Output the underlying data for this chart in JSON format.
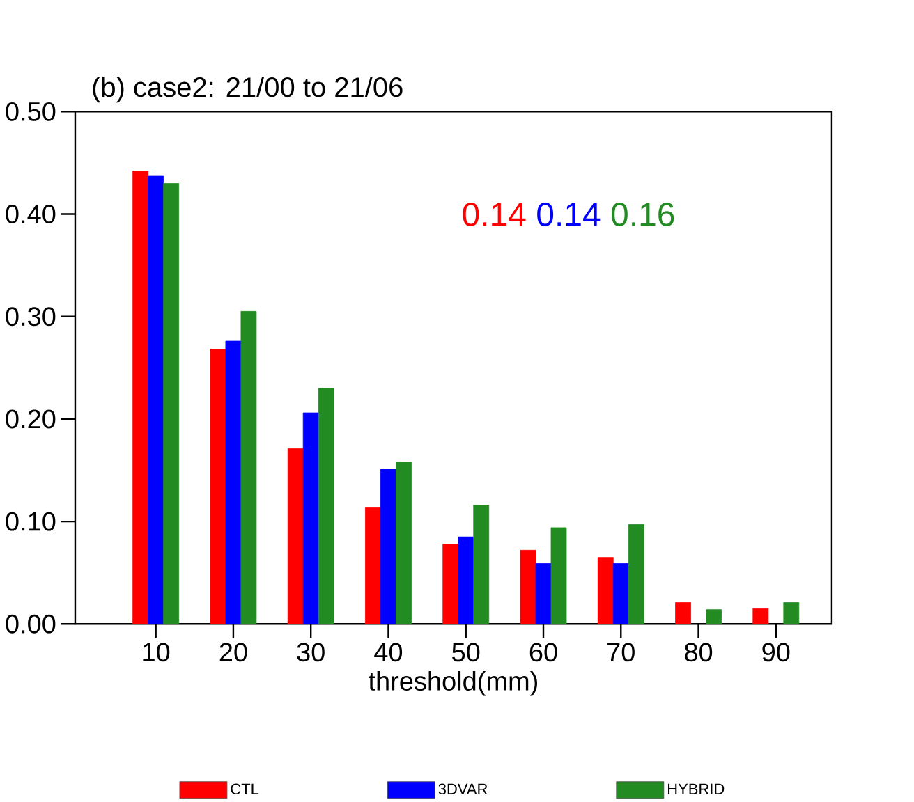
{
  "chart_data": {
    "type": "bar",
    "title": "(b) case2: 21/00 to 21/06",
    "xlabel": "threshold(mm)",
    "categories": [
      "10",
      "20",
      "30",
      "40",
      "50",
      "60",
      "70",
      "80",
      "90"
    ],
    "series": [
      {
        "name": "CTL",
        "color": "#ff0000",
        "values": [
          0.442,
          0.268,
          0.171,
          0.114,
          0.078,
          0.072,
          0.065,
          0.021,
          0.015
        ]
      },
      {
        "name": "3DVAR",
        "color": "#0000ff",
        "values": [
          0.437,
          0.276,
          0.206,
          0.151,
          0.085,
          0.059,
          0.059,
          null,
          null
        ]
      },
      {
        "name": "HYBRID",
        "color": "#228b22",
        "values": [
          0.43,
          0.305,
          0.23,
          0.158,
          0.116,
          0.094,
          0.097,
          0.014,
          0.021
        ]
      }
    ],
    "annotations": [
      "0.14",
      "0.14",
      "0.16"
    ],
    "ylim": [
      0,
      0.5
    ],
    "yticks": [
      {
        "value": 0,
        "label": "0.00"
      },
      {
        "value": 0.1,
        "label": "0.10"
      },
      {
        "value": 0.2,
        "label": "0.20"
      },
      {
        "value": 0.3,
        "label": "0.30"
      },
      {
        "value": 0.4,
        "label": "0.40"
      },
      {
        "value": 0.5,
        "label": "0.50"
      }
    ],
    "legend": "bottom"
  }
}
